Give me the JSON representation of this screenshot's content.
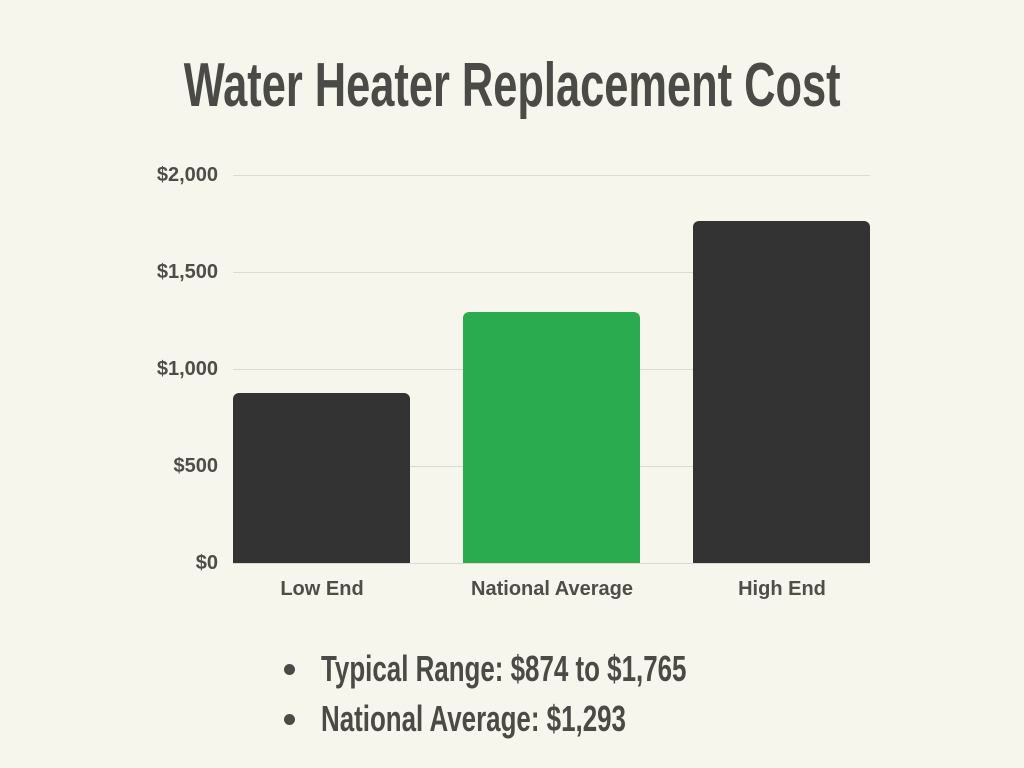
{
  "title": "Water Heater Replacement Cost",
  "chart_data": {
    "type": "bar",
    "title": "Water Heater Replacement Cost",
    "categories": [
      "Low End",
      "National Average",
      "High End"
    ],
    "values": [
      874,
      1293,
      1765
    ],
    "bar_colors": [
      "#333333",
      "#2AAB50",
      "#333333"
    ],
    "xlabel": "",
    "ylabel": "",
    "ylim": [
      0,
      2000
    ],
    "ytick_step": 500,
    "ytick_labels": [
      "$0",
      "$500",
      "$1,000",
      "$1,500",
      "$2,000"
    ],
    "grid": true,
    "legend": false
  },
  "notes": {
    "items": [
      "Typical Range: $874 to $1,765",
      "National Average: $1,293"
    ]
  },
  "colors": {
    "background": "#F7F6EC",
    "bar_dark": "#333333",
    "bar_accent": "#2AAB50",
    "gridline": "#DCDBD2",
    "text": "#4A4A47"
  }
}
